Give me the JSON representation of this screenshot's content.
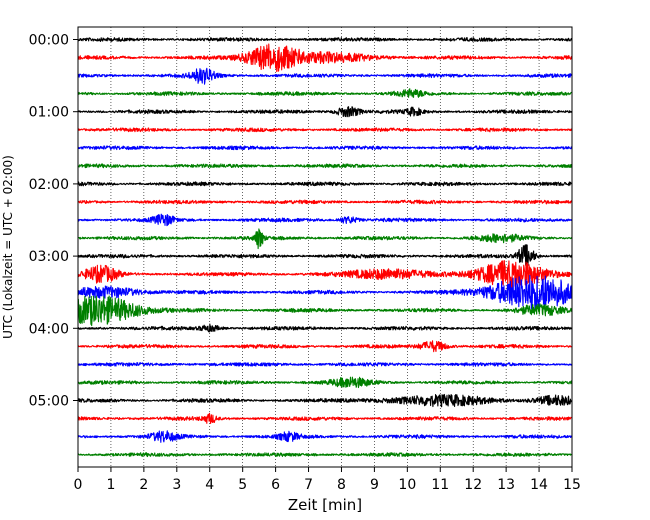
{
  "chart_data": {
    "type": "line",
    "subtype": "helicorder",
    "title": "",
    "xlabel": "Zeit  [min]",
    "ylabel": "UTC (Lokalzeit = UTC + 02:00)",
    "xlim": [
      0,
      15
    ],
    "x_ticks": [
      0,
      1,
      2,
      3,
      4,
      5,
      6,
      7,
      8,
      9,
      10,
      11,
      12,
      13,
      14,
      15
    ],
    "x_tick_labels": [
      "0",
      "1",
      "2",
      "3",
      "4",
      "5",
      "6",
      "7",
      "8",
      "9",
      "10",
      "11",
      "12",
      "13",
      "14",
      "15"
    ],
    "y_tick_labels": [
      "00:00",
      "01:00",
      "02:00",
      "03:00",
      "04:00",
      "05:00"
    ],
    "y_tick_rows": [
      0,
      4,
      8,
      12,
      16,
      20
    ],
    "rows": 24,
    "minutes_per_row": 15,
    "grid": "vertical-dotted",
    "colors": [
      "#000000",
      "#ff0000",
      "#0000ff",
      "#008000"
    ],
    "events": [
      {
        "row": 1,
        "center_min": 5.9,
        "width_min": 0.75,
        "amplitude": 1.4
      },
      {
        "row": 1,
        "center_min": 7.5,
        "width_min": 1.5,
        "amplitude": 0.45
      },
      {
        "row": 2,
        "center_min": 3.8,
        "width_min": 0.35,
        "amplitude": 0.8
      },
      {
        "row": 3,
        "center_min": 10.1,
        "width_min": 0.4,
        "amplitude": 0.35
      },
      {
        "row": 4,
        "center_min": 8.2,
        "width_min": 0.35,
        "amplitude": 0.55
      },
      {
        "row": 4,
        "center_min": 10.2,
        "width_min": 0.25,
        "amplitude": 0.35
      },
      {
        "row": 10,
        "center_min": 2.6,
        "width_min": 0.3,
        "amplitude": 0.55
      },
      {
        "row": 10,
        "center_min": 8.2,
        "width_min": 0.3,
        "amplitude": 0.35
      },
      {
        "row": 11,
        "center_min": 5.5,
        "width_min": 0.12,
        "amplitude": 1.1
      },
      {
        "row": 11,
        "center_min": 12.8,
        "width_min": 0.7,
        "amplitude": 0.35
      },
      {
        "row": 12,
        "center_min": 13.6,
        "width_min": 0.25,
        "amplitude": 1.2
      },
      {
        "row": 13,
        "center_min": 0.7,
        "width_min": 0.5,
        "amplitude": 0.85
      },
      {
        "row": 13,
        "center_min": 9.5,
        "width_min": 1.2,
        "amplitude": 0.55
      },
      {
        "row": 13,
        "center_min": 13.2,
        "width_min": 1.0,
        "amplitude": 1.5
      },
      {
        "row": 14,
        "center_min": 0.9,
        "width_min": 1.0,
        "amplitude": 0.55
      },
      {
        "row": 14,
        "center_min": 13.8,
        "width_min": 1.3,
        "amplitude": 1.9
      },
      {
        "row": 15,
        "center_min": 0.6,
        "width_min": 1.2,
        "amplitude": 1.6
      },
      {
        "row": 15,
        "center_min": 14.0,
        "width_min": 0.7,
        "amplitude": 0.5
      },
      {
        "row": 16,
        "center_min": 4.0,
        "width_min": 0.3,
        "amplitude": 0.35
      },
      {
        "row": 17,
        "center_min": 10.8,
        "width_min": 0.4,
        "amplitude": 0.55
      },
      {
        "row": 19,
        "center_min": 8.3,
        "width_min": 0.6,
        "amplitude": 0.45
      },
      {
        "row": 20,
        "center_min": 11.0,
        "width_min": 1.6,
        "amplitude": 0.5
      },
      {
        "row": 20,
        "center_min": 14.5,
        "width_min": 0.6,
        "amplitude": 0.45
      },
      {
        "row": 21,
        "center_min": 4.0,
        "width_min": 0.2,
        "amplitude": 0.45
      },
      {
        "row": 22,
        "center_min": 2.6,
        "width_min": 0.4,
        "amplitude": 0.5
      },
      {
        "row": 22,
        "center_min": 6.4,
        "width_min": 0.3,
        "amplitude": 0.4
      }
    ]
  }
}
